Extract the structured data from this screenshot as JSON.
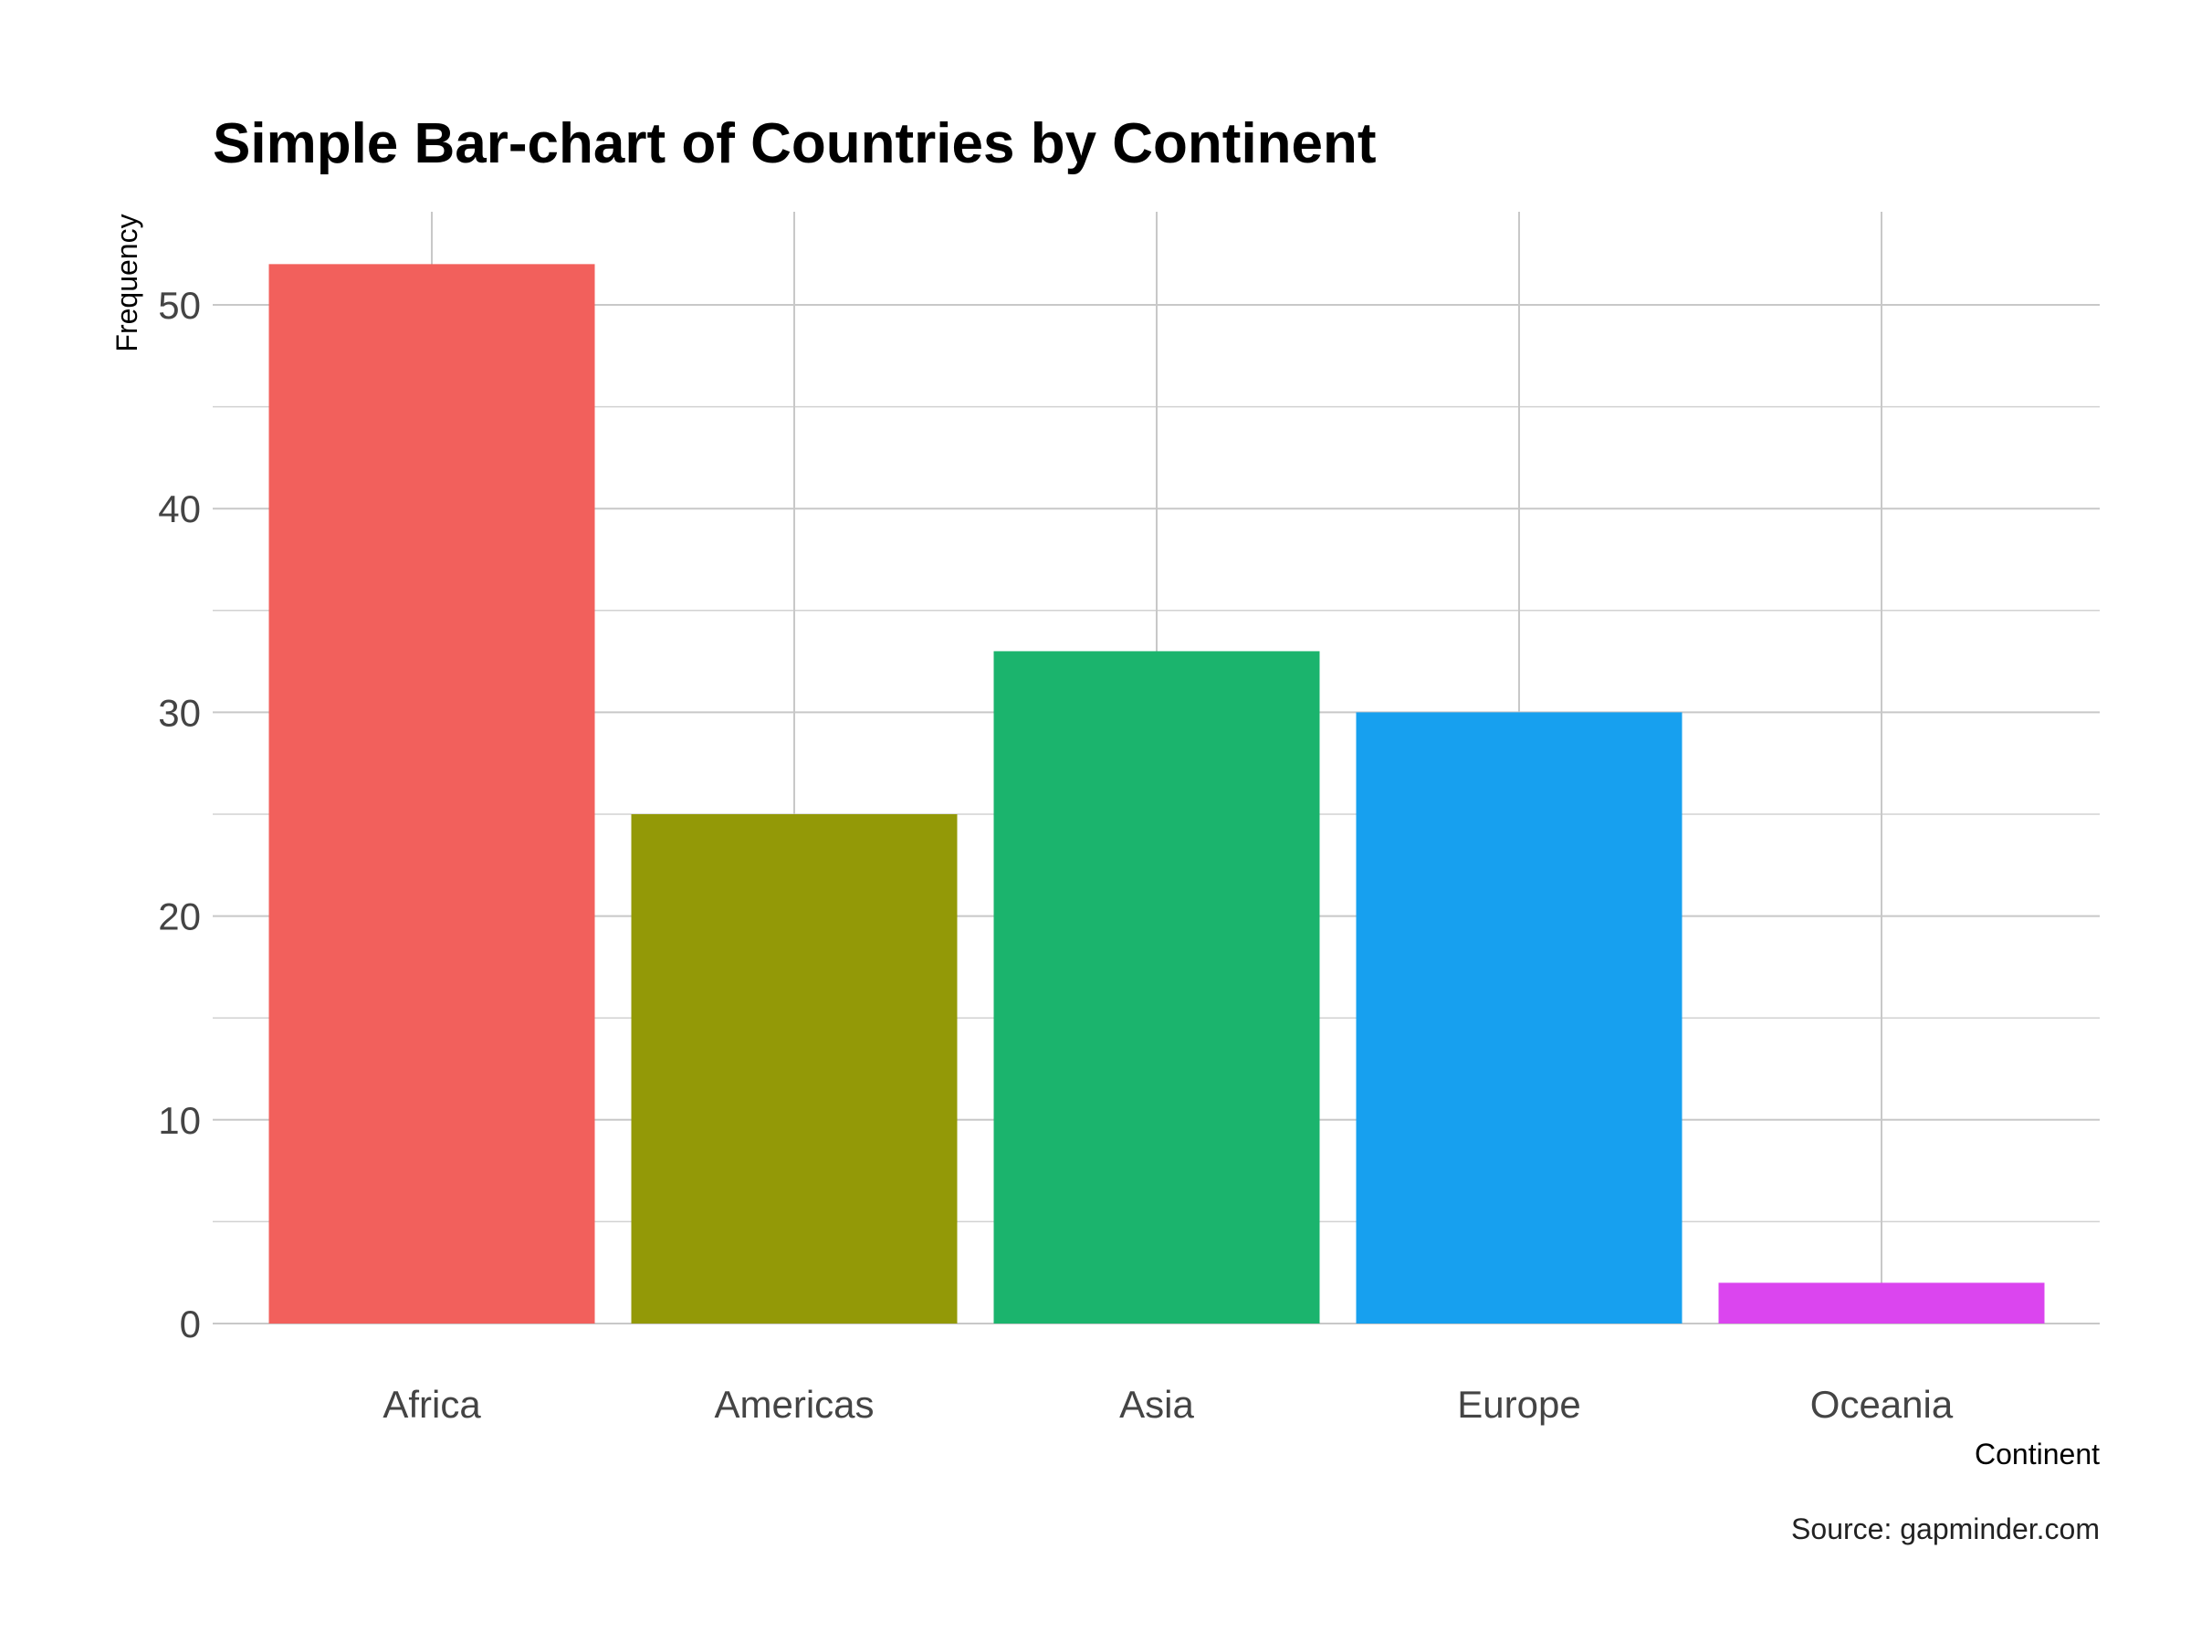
{
  "chart_data": {
    "type": "bar",
    "title": "Simple Bar-chart of Countries by Continent",
    "xlabel": "Continent",
    "ylabel": "Frequency",
    "caption": "Source: gapminder.com",
    "categories": [
      "Africa",
      "Americas",
      "Asia",
      "Europe",
      "Oceania"
    ],
    "values": [
      52,
      25,
      33,
      30,
      2
    ],
    "colors": [
      "#F2605C",
      "#939907",
      "#1BB46D",
      "#17A0EF",
      "#DB45EF"
    ],
    "ylim": [
      0,
      55
    ],
    "yticks": [
      0,
      10,
      20,
      30,
      40,
      50
    ],
    "y_minor_ticks": [
      5,
      15,
      25,
      35,
      45
    ],
    "grid": true,
    "legend": "none"
  }
}
